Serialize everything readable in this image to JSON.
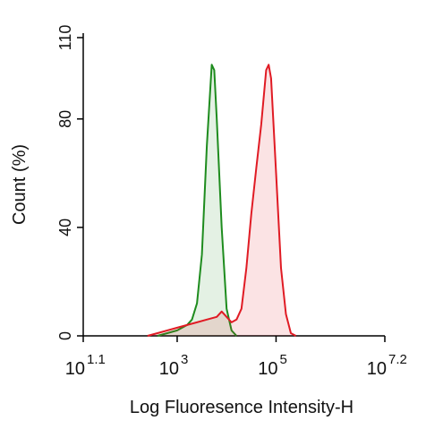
{
  "chart_data": {
    "type": "line",
    "log_x": true,
    "xlabel": "Log Fluoresence Intensity-H",
    "ylabel": "Count  (%)",
    "xlim": [
      12.589254,
      15848931.92
    ],
    "ylim": [
      0,
      110
    ],
    "xticks": [
      {
        "value": 12.589254,
        "label": "10",
        "exponent": "1.1"
      },
      {
        "value": 1000,
        "label": "10",
        "exponent": "3"
      },
      {
        "value": 100000,
        "label": "10",
        "exponent": "5"
      },
      {
        "value": 15848931.92,
        "label": "10",
        "exponent": "7.2"
      }
    ],
    "yticks": [
      0,
      40,
      80,
      110
    ],
    "series": [
      {
        "color": "#1e8c1e",
        "fill": "rgba(30,140,30,0.12)",
        "x": [
          398,
          631,
          1000,
          1259,
          1585,
          1995,
          2512,
          3162,
          3981,
          5012,
          5623,
          6310,
          7943,
          10000,
          12589,
          15849
        ],
        "values": [
          0,
          1,
          2,
          3,
          4,
          6,
          12,
          30,
          70,
          100,
          98,
          80,
          40,
          10,
          2,
          0
        ]
      },
      {
        "color": "#e01b24",
        "fill": "rgba(224,27,36,0.12)",
        "x": [
          251,
          398,
          631,
          1000,
          1585,
          2512,
          3981,
          6310,
          7943,
          10000,
          12589,
          15849,
          19953,
          25119,
          31623,
          39811,
          50119,
          63096,
          70795,
          79433,
          100000,
          125893,
          158489,
          199526,
          251189
        ],
        "values": [
          0,
          1,
          2,
          3,
          4,
          5,
          6,
          7,
          9,
          7,
          5,
          6,
          10,
          25,
          45,
          62,
          78,
          98,
          100,
          95,
          60,
          25,
          8,
          1,
          0
        ]
      }
    ]
  }
}
